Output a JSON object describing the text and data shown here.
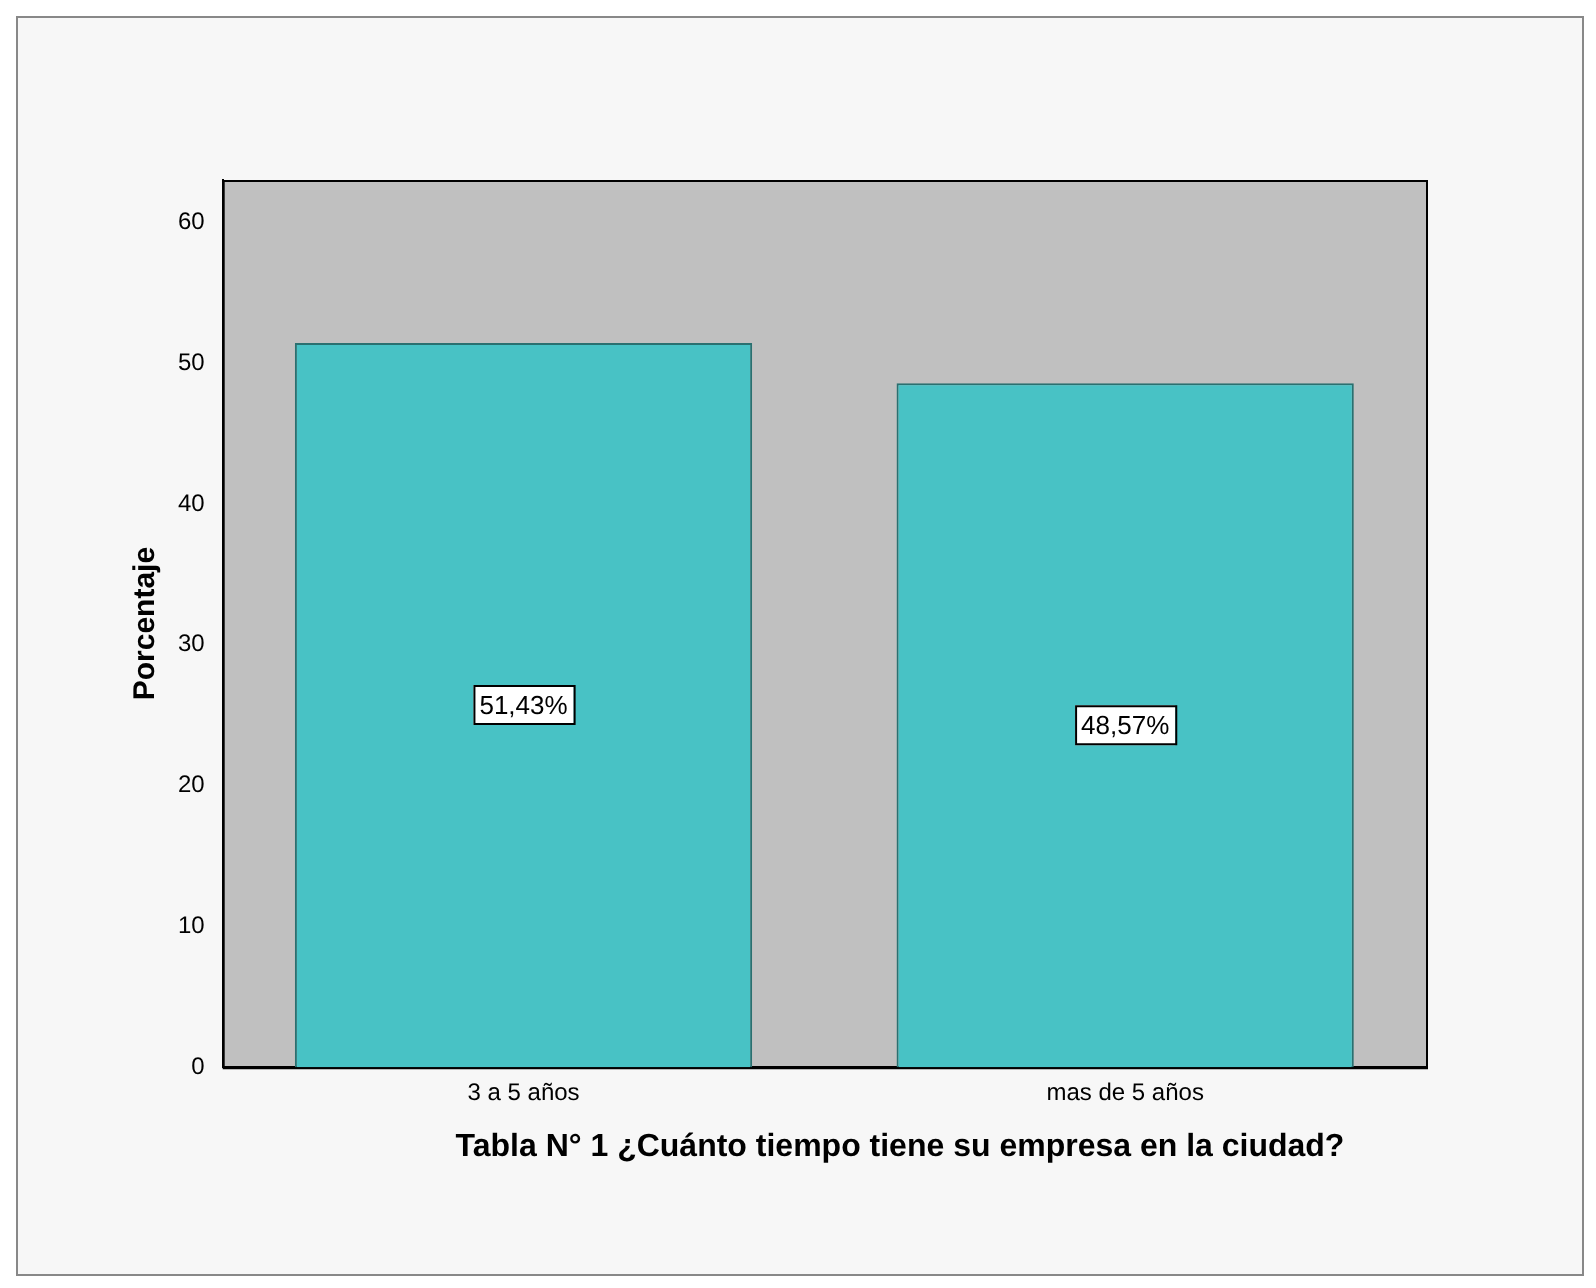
{
  "chart_data": {
    "type": "bar",
    "xlabel": "Tabla N° 1 ¿Cuánto tiempo tiene su empresa en la ciudad?",
    "ylabel": "Porcentaje",
    "categories": [
      "3 a 5 años",
      "mas de 5 años"
    ],
    "values": [
      51.43,
      48.57
    ],
    "color": "#48c2c5",
    "value_labels": [
      "51,43%",
      "48,57%"
    ],
    "ylim": [
      0,
      63
    ],
    "yticks": [
      0,
      10,
      20,
      30,
      40,
      50,
      60
    ],
    "grid": false,
    "legend": false
  }
}
